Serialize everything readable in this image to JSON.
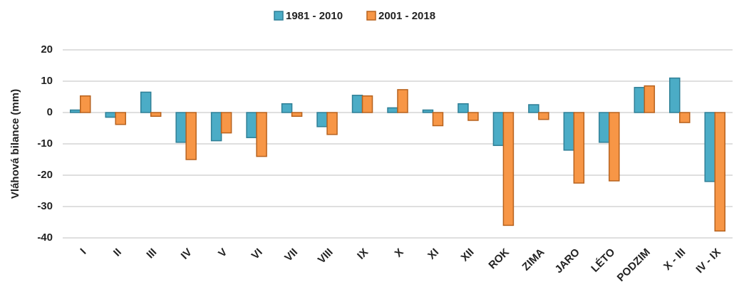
{
  "chart_data": {
    "type": "bar",
    "y_label": "Vláhová bilance (mm)",
    "categories": [
      "I",
      "II",
      "III",
      "IV",
      "V",
      "VI",
      "VII",
      "VIII",
      "IX",
      "X",
      "XI",
      "XII",
      "ROK",
      "ZIMA",
      "JARO",
      "LÉTO",
      "PODZIM",
      "X - III",
      "IV - IX"
    ],
    "series": [
      {
        "name": "1981 - 2010",
        "color": "#4bacc6",
        "values": [
          0.8,
          -1.5,
          6.5,
          -9.5,
          -9,
          -8,
          2.8,
          -4.5,
          5.5,
          1.5,
          0.8,
          2.8,
          -10.5,
          2.5,
          -12,
          -9.5,
          8,
          11,
          -22
        ]
      },
      {
        "name": "2001 - 2018",
        "color": "#f79646",
        "values": [
          5.3,
          -3.8,
          -1.2,
          -15,
          -6.5,
          -14,
          -1.2,
          -7,
          5.3,
          7.3,
          -4.2,
          -2.5,
          -36,
          -2.2,
          -22.5,
          -21.8,
          8.5,
          -3.2,
          -37.8
        ]
      }
    ],
    "ylim": [
      -40,
      20
    ],
    "yticks": [
      -40,
      -30,
      -20,
      -10,
      0,
      10,
      20
    ],
    "grid": true,
    "legend": "top"
  }
}
